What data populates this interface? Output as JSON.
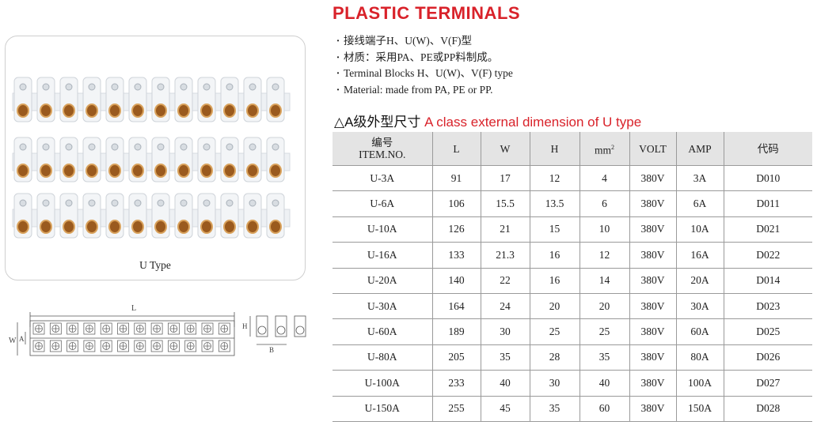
{
  "title": "PLASTIC TERMINALS",
  "bullets": [
    "接线端子H、U(W)、V(F)型",
    "材质：采用PA、PE或PP料制成。",
    "Terminal Blocks H、U(W)、V(F) type",
    "Material: made from PA, PE or PP."
  ],
  "subtitle": {
    "prefix": "△A级外型尺寸",
    "english": "A class external dimension of U type"
  },
  "photo": {
    "caption": "U Type"
  },
  "drawing": {
    "label_L": "L",
    "label_W": "W",
    "label_A": "A",
    "label_H": "H",
    "label_B": "B"
  },
  "table": {
    "headers": {
      "item_cn": "编号",
      "item_en": "ITEM.NO.",
      "l": "L",
      "w": "W",
      "h": "H",
      "mm": "mm",
      "mm_sup": "2",
      "volt": "VOLT",
      "amp": "AMP",
      "code": "代码"
    },
    "rows": [
      {
        "item": "U-3A",
        "l": "91",
        "w": "17",
        "h": "12",
        "mm2": "4",
        "volt": "380V",
        "amp": "3A",
        "code": "D010"
      },
      {
        "item": "U-6A",
        "l": "106",
        "w": "15.5",
        "h": "13.5",
        "mm2": "6",
        "volt": "380V",
        "amp": "6A",
        "code": "D011"
      },
      {
        "item": "U-10A",
        "l": "126",
        "w": "21",
        "h": "15",
        "mm2": "10",
        "volt": "380V",
        "amp": "10A",
        "code": "D021"
      },
      {
        "item": "U-16A",
        "l": "133",
        "w": "21.3",
        "h": "16",
        "mm2": "12",
        "volt": "380V",
        "amp": "16A",
        "code": "D022"
      },
      {
        "item": "U-20A",
        "l": "140",
        "w": "22",
        "h": "16",
        "mm2": "14",
        "volt": "380V",
        "amp": "20A",
        "code": "D014"
      },
      {
        "item": "U-30A",
        "l": "164",
        "w": "24",
        "h": "20",
        "mm2": "20",
        "volt": "380V",
        "amp": "30A",
        "code": "D023"
      },
      {
        "item": "U-60A",
        "l": "189",
        "w": "30",
        "h": "25",
        "mm2": "25",
        "volt": "380V",
        "amp": "60A",
        "code": "D025"
      },
      {
        "item": "U-80A",
        "l": "205",
        "w": "35",
        "h": "28",
        "mm2": "35",
        "volt": "380V",
        "amp": "80A",
        "code": "D026"
      },
      {
        "item": "U-100A",
        "l": "233",
        "w": "40",
        "h": "30",
        "mm2": "40",
        "volt": "380V",
        "amp": "100A",
        "code": "D027"
      },
      {
        "item": "U-150A",
        "l": "255",
        "w": "45",
        "h": "35",
        "mm2": "60",
        "volt": "380V",
        "amp": "150A",
        "code": "D028"
      }
    ]
  }
}
